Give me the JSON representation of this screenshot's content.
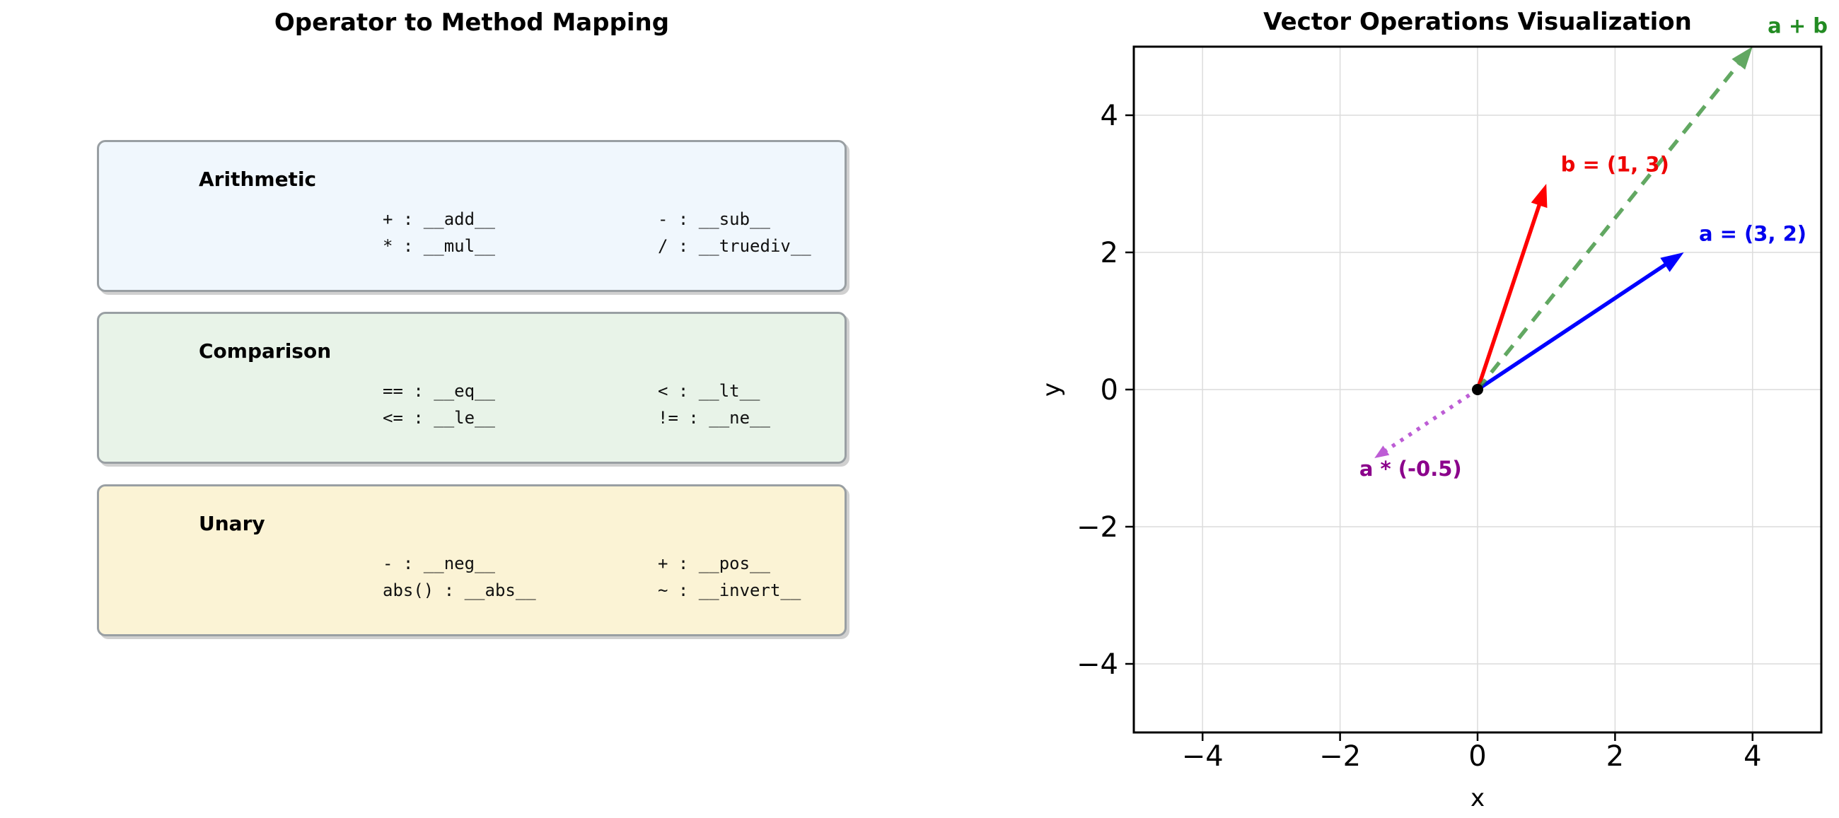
{
  "left_panel": {
    "title": "Operator to Method Mapping",
    "boxes": [
      {
        "header": "Arithmetic",
        "bg": "#f0f7fd",
        "entries": [
          "+ : __add__",
          "- : __sub__",
          "* : __mul__",
          "/ : __truediv__"
        ]
      },
      {
        "header": "Comparison",
        "bg": "#e8f3e8",
        "entries": [
          "== : __eq__",
          "< : __lt__",
          "<= : __le__",
          "!= : __ne__"
        ]
      },
      {
        "header": "Unary",
        "bg": "#fbf3d5",
        "entries": [
          "- : __neg__",
          "+ : __pos__",
          "abs() : __abs__",
          "~ : __invert__"
        ]
      }
    ]
  },
  "chart_data": {
    "type": "vector",
    "title": "Vector Operations Visualization",
    "xlabel": "x",
    "ylabel": "y",
    "xlim": [
      -5,
      5
    ],
    "ylim": [
      -5,
      5
    ],
    "grid": true,
    "grid_color": "#dcdcdc",
    "origin": [
      0,
      0
    ],
    "origin_marker_color": "#000000",
    "xticks": [
      {
        "v": -4,
        "label": "−4"
      },
      {
        "v": -2,
        "label": "−2"
      },
      {
        "v": 0,
        "label": "0"
      },
      {
        "v": 2,
        "label": "2"
      },
      {
        "v": 4,
        "label": "4"
      }
    ],
    "yticks": [
      {
        "v": -4,
        "label": "−4"
      },
      {
        "v": -2,
        "label": "−2"
      },
      {
        "v": 0,
        "label": "0"
      },
      {
        "v": 2,
        "label": "2"
      },
      {
        "v": 4,
        "label": "4"
      }
    ],
    "vectors": [
      {
        "name": "a",
        "components": [
          3,
          2
        ],
        "color": "#0000ff",
        "style": "solid",
        "opacity": 1,
        "label": "a = (3, 2)",
        "label_color": "#0000ee",
        "label_pos": [
          3.22,
          2.17
        ]
      },
      {
        "name": "b",
        "components": [
          1,
          3
        ],
        "color": "#ff0000",
        "style": "solid",
        "opacity": 1,
        "label": "b = (1, 3)",
        "label_color": "#ee0000",
        "label_pos": [
          1.21,
          3.18
        ]
      },
      {
        "name": "a + b",
        "components": [
          4,
          5
        ],
        "color": "#2e8b2e",
        "style": "dashed",
        "opacity": 0.75,
        "label": "a + b",
        "label_color": "#228b22",
        "label_pos": [
          4.22,
          5.2
        ]
      },
      {
        "name": "a * (-0.5)",
        "components": [
          -1.5,
          -1
        ],
        "color": "#ba55d3",
        "style": "dotted",
        "opacity": 0.95,
        "label": "a * (-0.5)",
        "label_color": "#8b008b",
        "label_pos": [
          -1.72,
          -1.26
        ]
      }
    ]
  }
}
